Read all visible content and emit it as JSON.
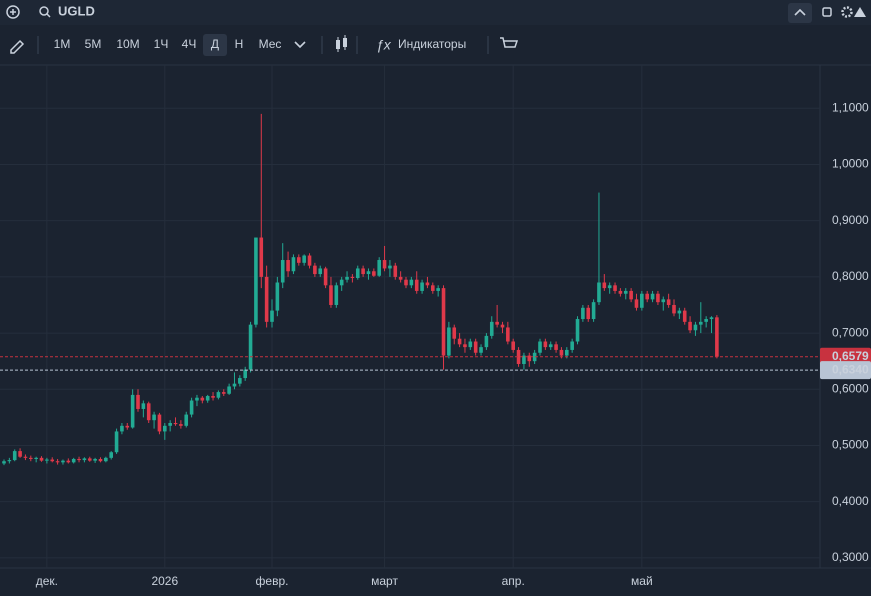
{
  "header": {
    "symbol": "UGLD"
  },
  "toolbar": {
    "timeframes": [
      "1М",
      "5М",
      "10М",
      "1Ч",
      "4Ч",
      "Д",
      "Н",
      "Мес"
    ],
    "active_index": 5,
    "indicators": "Индикаторы"
  },
  "chart_data": {
    "type": "candlestick",
    "up_color": "#22ab94",
    "down_color": "#e0394a",
    "candles": [
      [
        0.468,
        0.475,
        0.465,
        0.472
      ],
      [
        0.472,
        0.478,
        0.468,
        0.474
      ],
      [
        0.474,
        0.493,
        0.472,
        0.49
      ],
      [
        0.49,
        0.495,
        0.478,
        0.48
      ],
      [
        0.48,
        0.484,
        0.474,
        0.478
      ],
      [
        0.478,
        0.482,
        0.472,
        0.476
      ],
      [
        0.476,
        0.48,
        0.47,
        0.478
      ],
      [
        0.478,
        0.481,
        0.471,
        0.473
      ],
      [
        0.473,
        0.478,
        0.468,
        0.475
      ],
      [
        0.475,
        0.479,
        0.47,
        0.472
      ],
      [
        0.472,
        0.476,
        0.466,
        0.47
      ],
      [
        0.47,
        0.475,
        0.466,
        0.473
      ],
      [
        0.473,
        0.477,
        0.468,
        0.47
      ],
      [
        0.47,
        0.478,
        0.468,
        0.476
      ],
      [
        0.476,
        0.48,
        0.47,
        0.474
      ],
      [
        0.474,
        0.479,
        0.47,
        0.477
      ],
      [
        0.477,
        0.48,
        0.471,
        0.473
      ],
      [
        0.473,
        0.478,
        0.469,
        0.476
      ],
      [
        0.476,
        0.479,
        0.47,
        0.472
      ],
      [
        0.472,
        0.48,
        0.47,
        0.478
      ],
      [
        0.478,
        0.49,
        0.475,
        0.488
      ],
      [
        0.488,
        0.53,
        0.485,
        0.525
      ],
      [
        0.525,
        0.54,
        0.52,
        0.535
      ],
      [
        0.535,
        0.54,
        0.528,
        0.532
      ],
      [
        0.532,
        0.6,
        0.53,
        0.59
      ],
      [
        0.59,
        0.6,
        0.56,
        0.565
      ],
      [
        0.565,
        0.58,
        0.55,
        0.575
      ],
      [
        0.575,
        0.578,
        0.54,
        0.545
      ],
      [
        0.545,
        0.56,
        0.53,
        0.555
      ],
      [
        0.555,
        0.558,
        0.52,
        0.525
      ],
      [
        0.525,
        0.54,
        0.51,
        0.535
      ],
      [
        0.535,
        0.545,
        0.525,
        0.54
      ],
      [
        0.54,
        0.55,
        0.535,
        0.538
      ],
      [
        0.538,
        0.545,
        0.53,
        0.535
      ],
      [
        0.535,
        0.56,
        0.532,
        0.555
      ],
      [
        0.555,
        0.585,
        0.55,
        0.58
      ],
      [
        0.58,
        0.59,
        0.57,
        0.585
      ],
      [
        0.585,
        0.588,
        0.575,
        0.58
      ],
      [
        0.58,
        0.59,
        0.576,
        0.588
      ],
      [
        0.588,
        0.595,
        0.58,
        0.585
      ],
      [
        0.585,
        0.598,
        0.582,
        0.595
      ],
      [
        0.595,
        0.6,
        0.588,
        0.592
      ],
      [
        0.592,
        0.61,
        0.59,
        0.605
      ],
      [
        0.605,
        0.63,
        0.6,
        0.61
      ],
      [
        0.61,
        0.625,
        0.605,
        0.62
      ],
      [
        0.62,
        0.64,
        0.615,
        0.635
      ],
      [
        0.635,
        0.72,
        0.63,
        0.715
      ],
      [
        0.715,
        0.87,
        0.71,
        0.87
      ],
      [
        0.87,
        1.09,
        0.78,
        0.8
      ],
      [
        0.8,
        0.82,
        0.71,
        0.72
      ],
      [
        0.72,
        0.76,
        0.71,
        0.74
      ],
      [
        0.74,
        0.8,
        0.73,
        0.79
      ],
      [
        0.79,
        0.86,
        0.78,
        0.83
      ],
      [
        0.83,
        0.845,
        0.8,
        0.81
      ],
      [
        0.81,
        0.84,
        0.805,
        0.835
      ],
      [
        0.835,
        0.84,
        0.82,
        0.825
      ],
      [
        0.825,
        0.84,
        0.82,
        0.838
      ],
      [
        0.838,
        0.842,
        0.815,
        0.82
      ],
      [
        0.82,
        0.825,
        0.8,
        0.805
      ],
      [
        0.805,
        0.82,
        0.8,
        0.815
      ],
      [
        0.815,
        0.818,
        0.78,
        0.785
      ],
      [
        0.785,
        0.8,
        0.745,
        0.75
      ],
      [
        0.75,
        0.79,
        0.745,
        0.785
      ],
      [
        0.785,
        0.8,
        0.775,
        0.795
      ],
      [
        0.795,
        0.81,
        0.79,
        0.8
      ],
      [
        0.8,
        0.805,
        0.79,
        0.798
      ],
      [
        0.798,
        0.82,
        0.795,
        0.815
      ],
      [
        0.815,
        0.82,
        0.8,
        0.805
      ],
      [
        0.805,
        0.815,
        0.795,
        0.81
      ],
      [
        0.81,
        0.815,
        0.8,
        0.802
      ],
      [
        0.802,
        0.835,
        0.8,
        0.83
      ],
      [
        0.83,
        0.855,
        0.81,
        0.815
      ],
      [
        0.815,
        0.83,
        0.8,
        0.82
      ],
      [
        0.82,
        0.825,
        0.795,
        0.8
      ],
      [
        0.8,
        0.81,
        0.79,
        0.795
      ],
      [
        0.795,
        0.8,
        0.78,
        0.785
      ],
      [
        0.785,
        0.8,
        0.78,
        0.795
      ],
      [
        0.795,
        0.81,
        0.77,
        0.775
      ],
      [
        0.775,
        0.795,
        0.77,
        0.79
      ],
      [
        0.79,
        0.8,
        0.78,
        0.785
      ],
      [
        0.785,
        0.79,
        0.77,
        0.775
      ],
      [
        0.775,
        0.785,
        0.765,
        0.78
      ],
      [
        0.78,
        0.785,
        0.635,
        0.66
      ],
      [
        0.66,
        0.72,
        0.655,
        0.71
      ],
      [
        0.71,
        0.715,
        0.68,
        0.69
      ],
      [
        0.69,
        0.7,
        0.675,
        0.68
      ],
      [
        0.68,
        0.69,
        0.665,
        0.675
      ],
      [
        0.675,
        0.69,
        0.67,
        0.685
      ],
      [
        0.685,
        0.69,
        0.66,
        0.665
      ],
      [
        0.665,
        0.68,
        0.66,
        0.675
      ],
      [
        0.675,
        0.7,
        0.67,
        0.695
      ],
      [
        0.695,
        0.73,
        0.69,
        0.72
      ],
      [
        0.72,
        0.75,
        0.71,
        0.715
      ],
      [
        0.715,
        0.72,
        0.7,
        0.71
      ],
      [
        0.71,
        0.72,
        0.68,
        0.685
      ],
      [
        0.685,
        0.69,
        0.665,
        0.67
      ],
      [
        0.67,
        0.675,
        0.64,
        0.645
      ],
      [
        0.645,
        0.665,
        0.635,
        0.66
      ],
      [
        0.66,
        0.665,
        0.64,
        0.65
      ],
      [
        0.65,
        0.67,
        0.645,
        0.665
      ],
      [
        0.665,
        0.69,
        0.66,
        0.685
      ],
      [
        0.685,
        0.69,
        0.67,
        0.675
      ],
      [
        0.675,
        0.685,
        0.67,
        0.68
      ],
      [
        0.68,
        0.685,
        0.665,
        0.67
      ],
      [
        0.67,
        0.675,
        0.655,
        0.66
      ],
      [
        0.66,
        0.675,
        0.655,
        0.67
      ],
      [
        0.67,
        0.69,
        0.665,
        0.685
      ],
      [
        0.685,
        0.73,
        0.68,
        0.725
      ],
      [
        0.725,
        0.75,
        0.72,
        0.745
      ],
      [
        0.745,
        0.75,
        0.72,
        0.725
      ],
      [
        0.725,
        0.76,
        0.72,
        0.755
      ],
      [
        0.755,
        0.95,
        0.75,
        0.79
      ],
      [
        0.79,
        0.805,
        0.775,
        0.78
      ],
      [
        0.78,
        0.79,
        0.77,
        0.785
      ],
      [
        0.785,
        0.79,
        0.77,
        0.775
      ],
      [
        0.775,
        0.78,
        0.765,
        0.77
      ],
      [
        0.77,
        0.78,
        0.76,
        0.775
      ],
      [
        0.775,
        0.78,
        0.755,
        0.76
      ],
      [
        0.76,
        0.77,
        0.74,
        0.745
      ],
      [
        0.745,
        0.775,
        0.74,
        0.77
      ],
      [
        0.77,
        0.775,
        0.755,
        0.76
      ],
      [
        0.76,
        0.775,
        0.755,
        0.77
      ],
      [
        0.77,
        0.775,
        0.75,
        0.755
      ],
      [
        0.755,
        0.765,
        0.74,
        0.76
      ],
      [
        0.76,
        0.77,
        0.745,
        0.75
      ],
      [
        0.75,
        0.76,
        0.73,
        0.735
      ],
      [
        0.735,
        0.745,
        0.725,
        0.74
      ],
      [
        0.74,
        0.745,
        0.715,
        0.72
      ],
      [
        0.72,
        0.73,
        0.7,
        0.705
      ],
      [
        0.705,
        0.72,
        0.695,
        0.715
      ],
      [
        0.715,
        0.755,
        0.7,
        0.72
      ],
      [
        0.72,
        0.73,
        0.71,
        0.725
      ],
      [
        0.725,
        0.73,
        0.7,
        0.728
      ],
      [
        0.728,
        0.732,
        0.655,
        0.658
      ]
    ],
    "ylim": [
      0.282,
      1.177
    ],
    "yticks": [
      {
        "value": 0.3,
        "label": "0,3000"
      },
      {
        "value": 0.4,
        "label": "0,4000"
      },
      {
        "value": 0.5,
        "label": "0,5000"
      },
      {
        "value": 0.6,
        "label": "0,6000"
      },
      {
        "value": 0.7,
        "label": "0,7000"
      },
      {
        "value": 0.8,
        "label": "0,8000"
      },
      {
        "value": 0.9,
        "label": "0,9000"
      },
      {
        "value": 1.0,
        "label": "1,0000"
      },
      {
        "value": 1.1,
        "label": "1,1000"
      }
    ],
    "xticks": [
      {
        "value": 8,
        "label": "дек."
      },
      {
        "value": 30,
        "label": "2026"
      },
      {
        "value": 50,
        "label": "февр."
      },
      {
        "value": 71,
        "label": "март"
      },
      {
        "value": 95,
        "label": "апр."
      },
      {
        "value": 119,
        "label": "май"
      }
    ],
    "price_lines": [
      {
        "value": 0.6579,
        "label": "0,6579",
        "color": "#c8323f"
      },
      {
        "value": 0.634,
        "label": "0,6340",
        "color": "#b8c4d4"
      }
    ],
    "grid": true
  }
}
